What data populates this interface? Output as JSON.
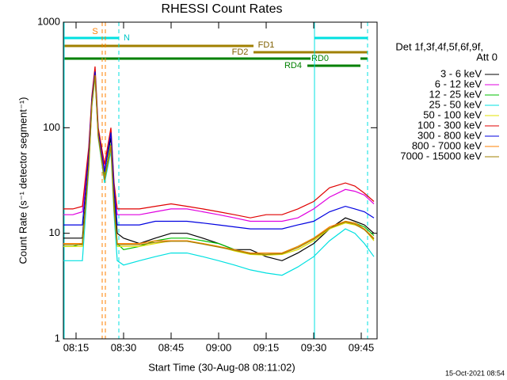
{
  "chart_data": {
    "type": "line",
    "title": "RHESSI Count Rates",
    "x_label": "Start Time (30-Aug-08 08:11:02)",
    "y_label": "Count Rate (s⁻¹ detector segment⁻¹)",
    "log_y": true,
    "xlim": [
      11,
      110
    ],
    "ylim": [
      1,
      1000
    ],
    "xticks": [
      {
        "value": 15,
        "label": "08:15"
      },
      {
        "value": 30,
        "label": "08:30"
      },
      {
        "value": 45,
        "label": "08:45"
      },
      {
        "value": 60,
        "label": "09:00"
      },
      {
        "value": 75,
        "label": "09:15"
      },
      {
        "value": 90,
        "label": "09:30"
      },
      {
        "value": 105,
        "label": "09:45"
      }
    ],
    "yticks": [
      1,
      10,
      100,
      1000
    ],
    "legend_title": [
      "Det 1f,3f,4f,5f,6f,9f,",
      "Att 0"
    ],
    "annotations": [
      "S",
      "N",
      "FD1",
      "FD2",
      "RD0",
      "RD4"
    ],
    "footer": "15-Oct-2021 08:54",
    "x": [
      11,
      14,
      17,
      19,
      20,
      21,
      22,
      24,
      26,
      27,
      28,
      30,
      35,
      40,
      45,
      50,
      55,
      60,
      65,
      70,
      75,
      80,
      85,
      90,
      95,
      100,
      103,
      106,
      109
    ],
    "series": [
      {
        "name": "3 - 6 keV",
        "color": "#000000",
        "values": [
          9,
          9,
          9,
          50,
          180,
          330,
          90,
          40,
          80,
          25,
          10,
          9,
          8,
          9,
          10,
          10,
          9,
          8,
          7,
          7,
          6,
          5.5,
          6.5,
          8,
          11,
          14,
          13,
          12,
          10
        ]
      },
      {
        "name": "6 - 12 keV",
        "color": "#e000e0",
        "values": [
          15,
          15,
          16,
          60,
          190,
          350,
          95,
          40,
          95,
          28,
          15,
          15,
          15,
          16,
          17,
          17,
          16,
          15,
          14,
          13,
          13,
          13,
          14,
          17,
          22,
          26,
          25,
          23,
          19
        ]
      },
      {
        "name": "12 - 25 keV",
        "color": "#00c000",
        "values": [
          7.5,
          7.5,
          8,
          45,
          170,
          320,
          85,
          35,
          70,
          20,
          8,
          7,
          7.5,
          8.5,
          9,
          9,
          8.5,
          8,
          7,
          6.5,
          6.5,
          6.5,
          7.5,
          9,
          11,
          13,
          12.5,
          11.5,
          9.5
        ]
      },
      {
        "name": "25 - 50 keV",
        "color": "#00e0e0",
        "values": [
          5.5,
          5.5,
          5.5,
          40,
          160,
          300,
          80,
          30,
          60,
          15,
          5.5,
          5,
          5.5,
          6,
          6.5,
          6.5,
          6,
          5.5,
          5,
          4.5,
          4.2,
          4,
          4.8,
          6,
          8.5,
          11,
          10,
          8,
          6
        ]
      },
      {
        "name": "50 - 100 keV",
        "color": "#e0e000",
        "values": [
          7.5,
          7.5,
          7.5,
          42,
          165,
          310,
          82,
          32,
          65,
          17,
          7.5,
          7.5,
          7.5,
          8,
          8.5,
          8.5,
          8,
          7.5,
          6.8,
          6.3,
          6.2,
          6.3,
          7,
          8.5,
          11,
          12.5,
          12,
          11,
          8.5
        ]
      },
      {
        "name": "100 - 300 keV",
        "color": "#e00000",
        "values": [
          17,
          17,
          18,
          65,
          200,
          380,
          100,
          45,
          100,
          30,
          17,
          17,
          17,
          18,
          19,
          18,
          17,
          16,
          15,
          14,
          15,
          15,
          17,
          20,
          27,
          30,
          28,
          24,
          20
        ]
      },
      {
        "name": "300 - 800 keV",
        "color": "#0000e0",
        "values": [
          12,
          12,
          12,
          55,
          185,
          340,
          92,
          38,
          90,
          26,
          12,
          12,
          12,
          13,
          13,
          13,
          12.5,
          12,
          11.5,
          11,
          11,
          11,
          12,
          13,
          16,
          18,
          17,
          16,
          14
        ]
      },
      {
        "name": "800 - 7000 keV",
        "color": "#ff8000",
        "values": [
          8,
          8,
          8,
          44,
          168,
          315,
          84,
          33,
          68,
          18,
          8,
          8,
          8,
          8.5,
          8.5,
          8.5,
          8,
          7.5,
          7,
          6.5,
          6.5,
          6.5,
          7.5,
          9,
          11.5,
          13,
          12.5,
          11,
          9
        ]
      },
      {
        "name": "7000 - 15000 keV",
        "color": "#a08000",
        "values": [
          7.8,
          7.8,
          7.8,
          43,
          166,
          312,
          83,
          32,
          66,
          17,
          7.8,
          7.8,
          7.8,
          8.2,
          8.4,
          8.4,
          7.9,
          7.4,
          6.9,
          6.4,
          6.3,
          6.4,
          7.3,
          8.8,
          11.2,
          12.8,
          12.2,
          10.8,
          8.8
        ]
      }
    ]
  }
}
